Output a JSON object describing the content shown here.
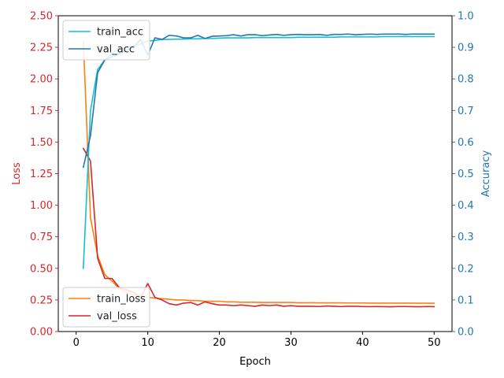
{
  "chart_data": {
    "type": "line",
    "title": "",
    "xlabel": "Epoch",
    "xlim": [
      -2.5,
      52.5
    ],
    "x_ticks": [
      0,
      10,
      20,
      30,
      40,
      50
    ],
    "left_axis": {
      "label": "Loss",
      "color": "#d62728",
      "ylim": [
        0,
        2.5
      ],
      "ticks": [
        "0.00",
        "0.25",
        "0.50",
        "0.75",
        "1.00",
        "1.25",
        "1.50",
        "1.75",
        "2.00",
        "2.25",
        "2.50"
      ]
    },
    "right_axis": {
      "label": "Accuracy",
      "color": "#1f77b4",
      "ylim": [
        0,
        1.0
      ],
      "ticks": [
        "0.0",
        "0.1",
        "0.2",
        "0.3",
        "0.4",
        "0.5",
        "0.6",
        "0.7",
        "0.8",
        "0.9",
        "1.0"
      ]
    },
    "x": [
      1,
      2,
      3,
      4,
      5,
      6,
      7,
      8,
      9,
      10,
      11,
      12,
      13,
      14,
      15,
      16,
      17,
      18,
      19,
      20,
      21,
      22,
      23,
      24,
      25,
      26,
      27,
      28,
      29,
      30,
      31,
      32,
      33,
      34,
      35,
      36,
      37,
      38,
      39,
      40,
      41,
      42,
      43,
      44,
      45,
      46,
      47,
      48,
      49,
      50
    ],
    "series": [
      {
        "name": "train_loss",
        "axis": "left",
        "color": "#ff7f0e",
        "values": [
          2.3,
          0.9,
          0.6,
          0.45,
          0.4,
          0.34,
          0.31,
          0.29,
          0.28,
          0.27,
          0.265,
          0.26,
          0.255,
          0.25,
          0.25,
          0.245,
          0.245,
          0.24,
          0.24,
          0.24,
          0.235,
          0.235,
          0.232,
          0.232,
          0.232,
          0.23,
          0.23,
          0.23,
          0.23,
          0.23,
          0.228,
          0.228,
          0.228,
          0.227,
          0.227,
          0.227,
          0.227,
          0.226,
          0.226,
          0.226,
          0.225,
          0.225,
          0.225,
          0.225,
          0.225,
          0.225,
          0.225,
          0.224,
          0.224,
          0.224
        ]
      },
      {
        "name": "val_loss",
        "axis": "left",
        "color": "#d62728",
        "values": [
          1.45,
          1.35,
          0.58,
          0.42,
          0.42,
          0.35,
          0.33,
          0.31,
          0.27,
          0.38,
          0.27,
          0.25,
          0.22,
          0.21,
          0.225,
          0.23,
          0.21,
          0.235,
          0.22,
          0.21,
          0.21,
          0.205,
          0.21,
          0.205,
          0.2,
          0.21,
          0.205,
          0.21,
          0.2,
          0.205,
          0.2,
          0.2,
          0.2,
          0.198,
          0.202,
          0.2,
          0.198,
          0.2,
          0.2,
          0.198,
          0.197,
          0.198,
          0.197,
          0.196,
          0.198,
          0.198,
          0.197,
          0.196,
          0.198,
          0.197
        ]
      },
      {
        "name": "train_acc",
        "axis": "right",
        "color": "#17becf",
        "values": [
          0.2,
          0.7,
          0.83,
          0.86,
          0.88,
          0.895,
          0.9,
          0.905,
          0.91,
          0.92,
          0.922,
          0.925,
          0.925,
          0.926,
          0.926,
          0.927,
          0.927,
          0.928,
          0.928,
          0.929,
          0.93,
          0.93,
          0.93,
          0.93,
          0.931,
          0.931,
          0.931,
          0.931,
          0.931,
          0.931,
          0.932,
          0.932,
          0.932,
          0.932,
          0.932,
          0.932,
          0.933,
          0.933,
          0.933,
          0.933,
          0.933,
          0.933,
          0.934,
          0.934,
          0.934,
          0.934,
          0.934,
          0.934,
          0.934,
          0.934
        ]
      },
      {
        "name": "val_acc",
        "axis": "right",
        "color": "#1f77b4",
        "values": [
          0.52,
          0.62,
          0.82,
          0.86,
          0.87,
          0.88,
          0.89,
          0.9,
          0.925,
          0.875,
          0.93,
          0.925,
          0.938,
          0.936,
          0.93,
          0.93,
          0.938,
          0.928,
          0.935,
          0.936,
          0.937,
          0.94,
          0.936,
          0.94,
          0.94,
          0.937,
          0.939,
          0.941,
          0.938,
          0.94,
          0.941,
          0.94,
          0.94,
          0.941,
          0.938,
          0.941,
          0.941,
          0.942,
          0.94,
          0.941,
          0.942,
          0.941,
          0.942,
          0.942,
          0.942,
          0.941,
          0.942,
          0.942,
          0.942,
          0.942
        ]
      }
    ],
    "legends": [
      {
        "placement": "upper-left",
        "entries": [
          "train_acc",
          "val_acc"
        ]
      },
      {
        "placement": "lower-left",
        "entries": [
          "train_loss",
          "val_loss"
        ]
      }
    ],
    "grid": false
  }
}
